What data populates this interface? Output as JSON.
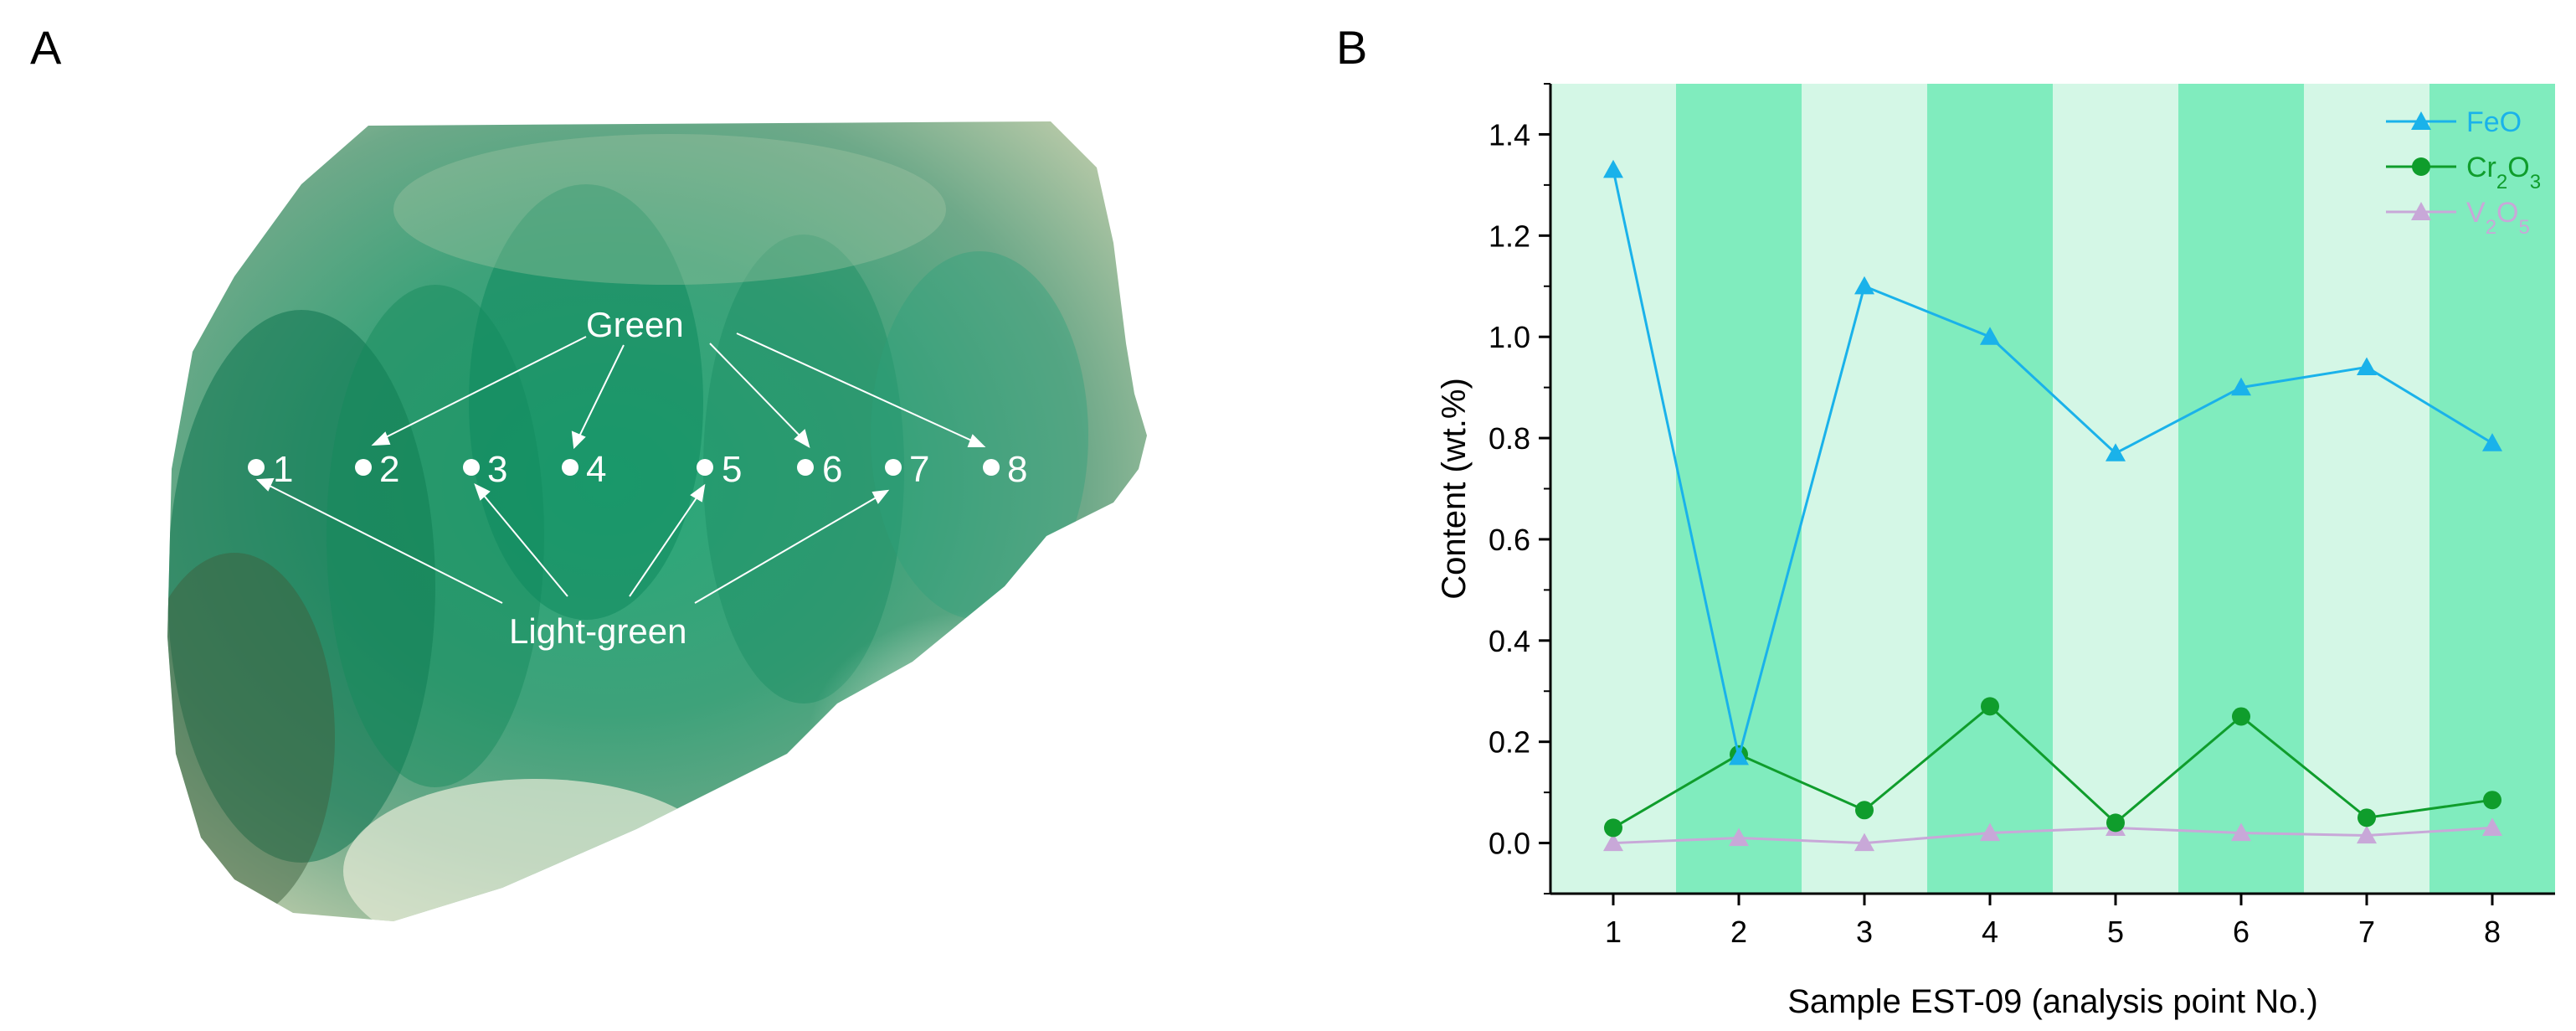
{
  "panels": {
    "a_label": "A",
    "b_label": "B"
  },
  "photo": {
    "green_label": "Green",
    "light_green_label": "Light-green",
    "points": [
      "1",
      "2",
      "3",
      "4",
      "5",
      "6",
      "7",
      "8"
    ],
    "colors": {
      "dark_green": "#1e8a5e",
      "mid_green": "#3aa678",
      "pale": "#cfe3c8",
      "label": "#ffffff"
    }
  },
  "chart_data": {
    "type": "line",
    "title": "",
    "xlabel": "Sample EST-09 (analysis point No.)",
    "ylabel": "Content (wt.%)",
    "x": [
      1,
      2,
      3,
      4,
      5,
      6,
      7,
      8
    ],
    "xticks": [
      "1",
      "2",
      "3",
      "4",
      "5",
      "6",
      "7",
      "8"
    ],
    "xlim": [
      0.5,
      8.5
    ],
    "ylim": [
      -0.1,
      1.5
    ],
    "yticks": [
      "0.0",
      "0.2",
      "0.4",
      "0.6",
      "0.8",
      "1.0",
      "1.2",
      "1.4"
    ],
    "ytick_values": [
      0,
      0.2,
      0.4,
      0.6,
      0.8,
      1.0,
      1.2,
      1.4
    ],
    "background_bands": {
      "light_color": "#d4f7e6",
      "dark_color": "#80ecbe",
      "pattern": [
        "light",
        "dark",
        "light",
        "dark",
        "light",
        "dark",
        "light",
        "dark"
      ]
    },
    "legend_position": "top-right",
    "series": [
      {
        "name": "FeO",
        "legend_text": "FeO",
        "marker": "triangle",
        "color": "#1ab2ea",
        "values": [
          1.33,
          0.17,
          1.1,
          1.0,
          0.77,
          0.9,
          0.94,
          0.79
        ]
      },
      {
        "name": "Cr2O3",
        "legend_text": "Cr",
        "legend_sub1": "2",
        "legend_mid": "O",
        "legend_sub2": "3",
        "marker": "circle",
        "color": "#0f9d2c",
        "values": [
          0.03,
          0.175,
          0.065,
          0.27,
          0.04,
          0.25,
          0.05,
          0.085
        ]
      },
      {
        "name": "V2O5",
        "legend_text": "V",
        "legend_sub1": "2",
        "legend_mid": "O",
        "legend_sub2": "5",
        "marker": "triangle",
        "color": "#c8a8d8",
        "values": [
          0.0,
          0.01,
          0.0,
          0.02,
          0.03,
          0.02,
          0.015,
          0.03
        ]
      }
    ]
  }
}
